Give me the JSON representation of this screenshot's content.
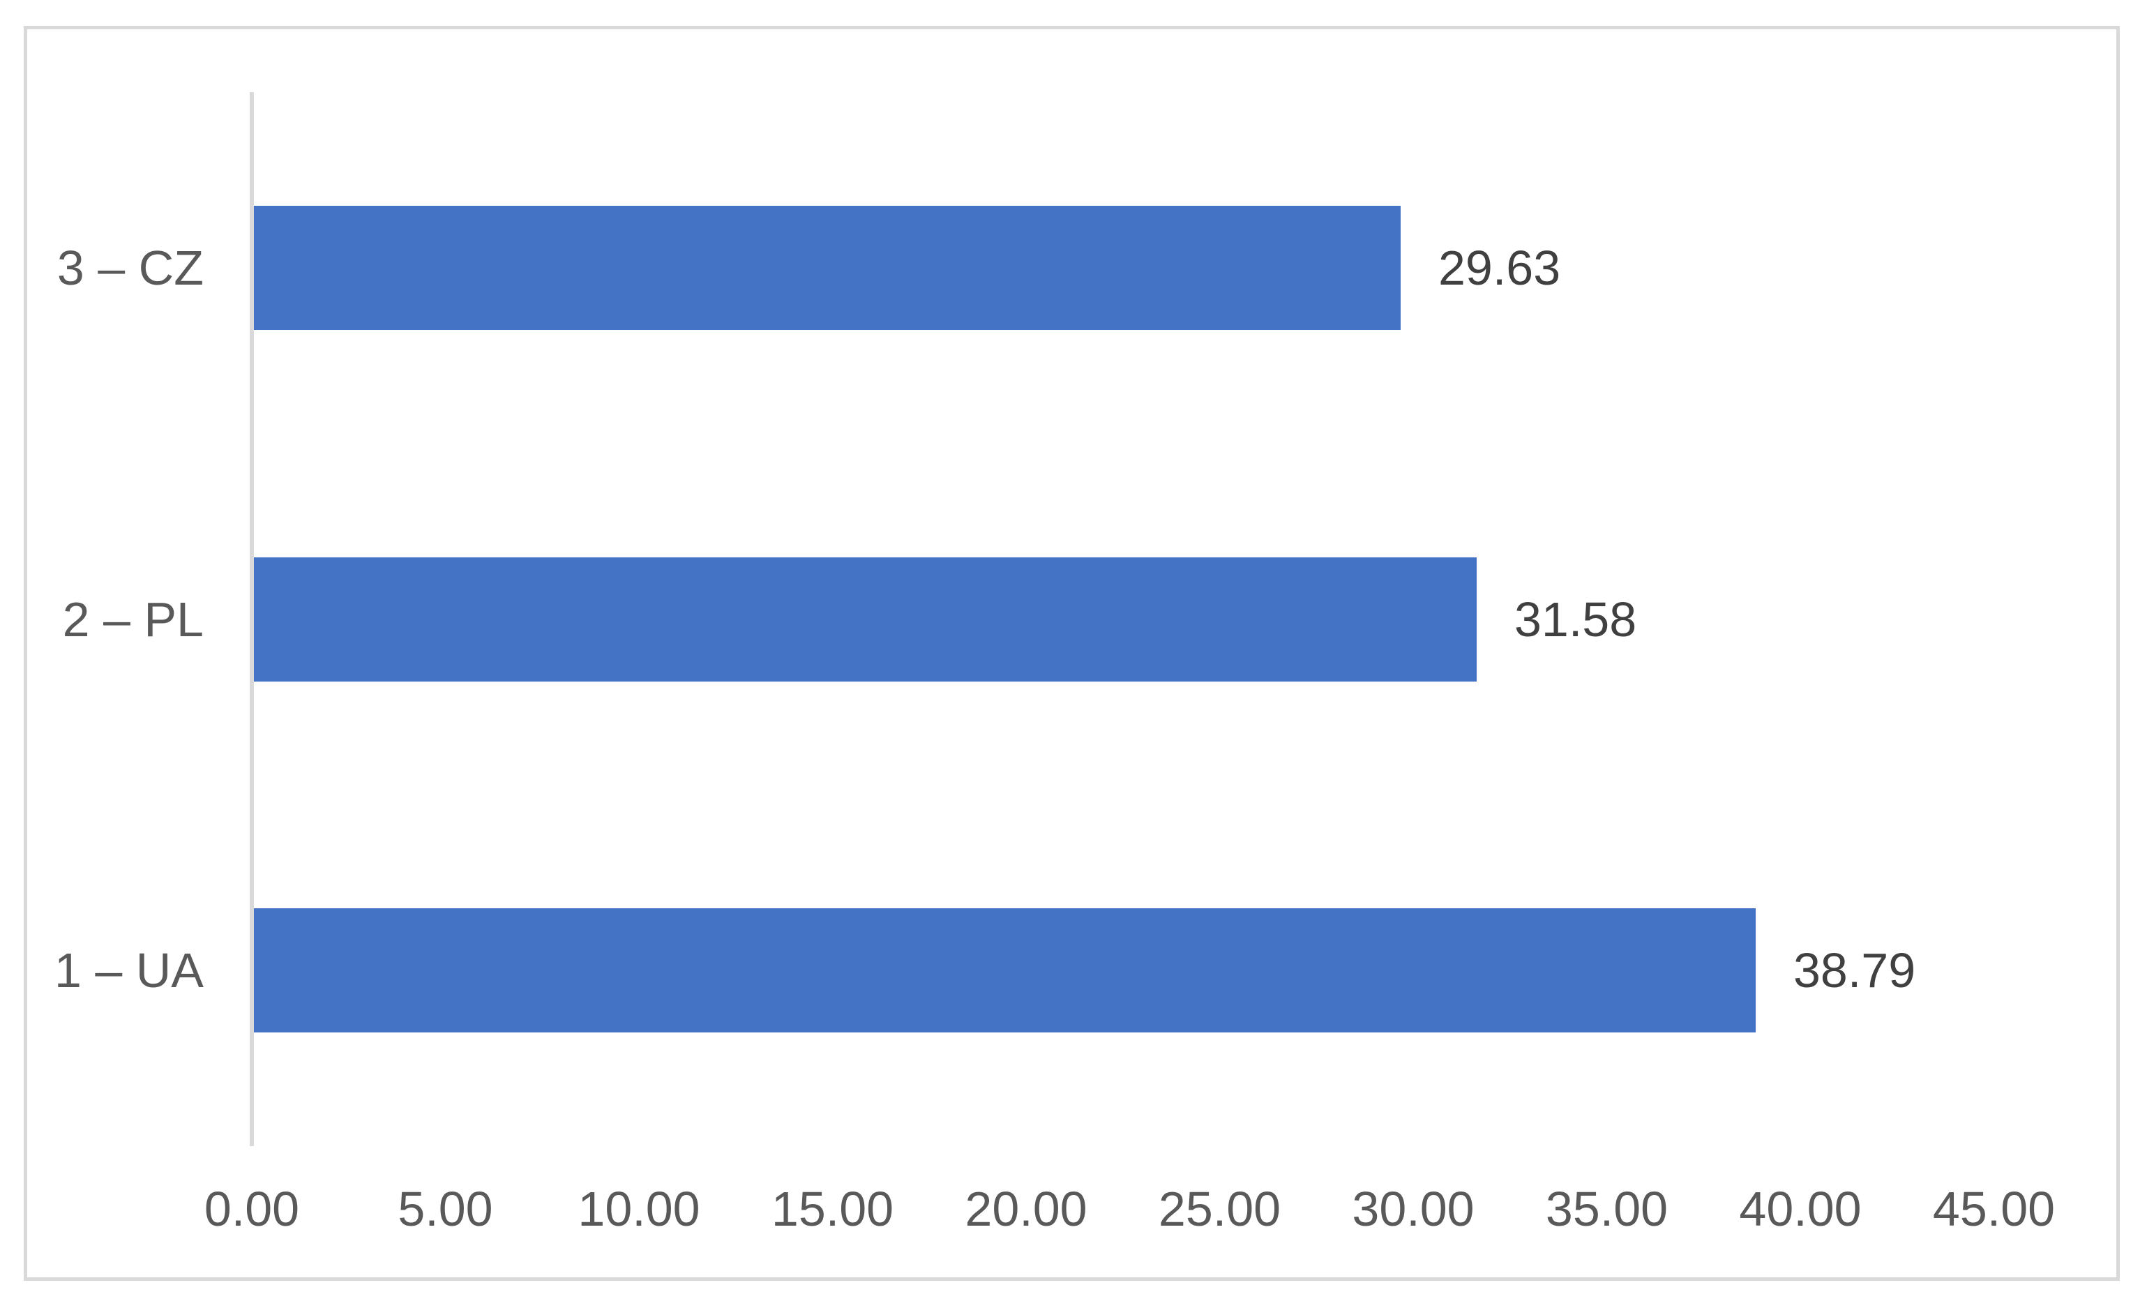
{
  "chart_data": {
    "type": "bar",
    "orientation": "horizontal",
    "title": "",
    "categories": [
      "3 – CZ",
      "2 – PL",
      "1 – UA"
    ],
    "values": [
      29.63,
      31.58,
      38.79
    ],
    "data_labels": [
      "29.63",
      "31.58",
      "38.79"
    ],
    "x_ticks": [
      "0.00",
      "5.00",
      "10.00",
      "15.00",
      "20.00",
      "25.00",
      "30.00",
      "35.00",
      "40.00",
      "45.00"
    ],
    "x_tick_values": [
      0,
      5,
      10,
      15,
      20,
      25,
      30,
      35,
      40,
      45
    ],
    "xlim": [
      0,
      45
    ],
    "grid": false,
    "legend": false,
    "colors": {
      "bar": "#4472C4",
      "axis_line": "#D9D9D9",
      "frame_border": "#D9D9D9",
      "data_label_text": "#404040",
      "axis_tick_text": "#595959",
      "background": "#FFFFFF"
    }
  }
}
